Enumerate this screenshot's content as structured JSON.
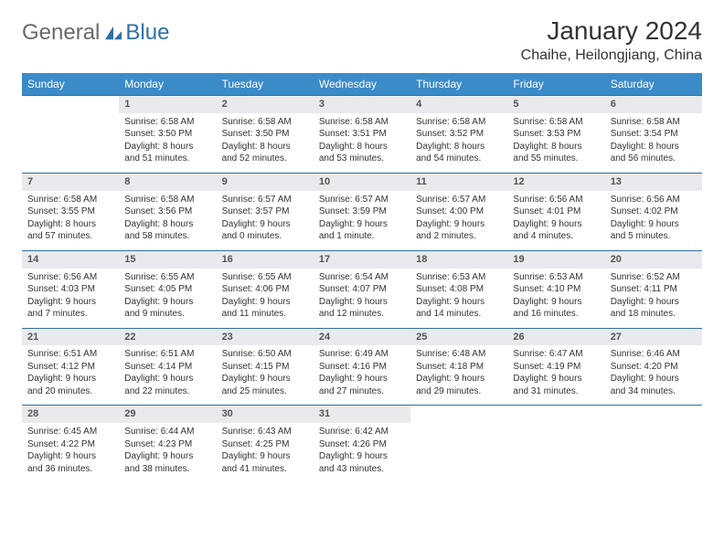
{
  "brand": {
    "word1": "General",
    "word2": "Blue"
  },
  "title": "January 2024",
  "location": "Chaihe, Heilongjiang, China",
  "colors": {
    "header_bg": "#3b8bc8",
    "header_text": "#ffffff",
    "daynum_bg": "#e8eaed",
    "rule": "#2f6fa8",
    "body_text": "#333333",
    "logo_gray": "#6a6a6a",
    "logo_blue": "#2f6fa8"
  },
  "weekdays": [
    "Sunday",
    "Monday",
    "Tuesday",
    "Wednesday",
    "Thursday",
    "Friday",
    "Saturday"
  ],
  "weeks": [
    [
      null,
      {
        "n": "1",
        "sr": "Sunrise: 6:58 AM",
        "ss": "Sunset: 3:50 PM",
        "dl": "Daylight: 8 hours and 51 minutes."
      },
      {
        "n": "2",
        "sr": "Sunrise: 6:58 AM",
        "ss": "Sunset: 3:50 PM",
        "dl": "Daylight: 8 hours and 52 minutes."
      },
      {
        "n": "3",
        "sr": "Sunrise: 6:58 AM",
        "ss": "Sunset: 3:51 PM",
        "dl": "Daylight: 8 hours and 53 minutes."
      },
      {
        "n": "4",
        "sr": "Sunrise: 6:58 AM",
        "ss": "Sunset: 3:52 PM",
        "dl": "Daylight: 8 hours and 54 minutes."
      },
      {
        "n": "5",
        "sr": "Sunrise: 6:58 AM",
        "ss": "Sunset: 3:53 PM",
        "dl": "Daylight: 8 hours and 55 minutes."
      },
      {
        "n": "6",
        "sr": "Sunrise: 6:58 AM",
        "ss": "Sunset: 3:54 PM",
        "dl": "Daylight: 8 hours and 56 minutes."
      }
    ],
    [
      {
        "n": "7",
        "sr": "Sunrise: 6:58 AM",
        "ss": "Sunset: 3:55 PM",
        "dl": "Daylight: 8 hours and 57 minutes."
      },
      {
        "n": "8",
        "sr": "Sunrise: 6:58 AM",
        "ss": "Sunset: 3:56 PM",
        "dl": "Daylight: 8 hours and 58 minutes."
      },
      {
        "n": "9",
        "sr": "Sunrise: 6:57 AM",
        "ss": "Sunset: 3:57 PM",
        "dl": "Daylight: 9 hours and 0 minutes."
      },
      {
        "n": "10",
        "sr": "Sunrise: 6:57 AM",
        "ss": "Sunset: 3:59 PM",
        "dl": "Daylight: 9 hours and 1 minute."
      },
      {
        "n": "11",
        "sr": "Sunrise: 6:57 AM",
        "ss": "Sunset: 4:00 PM",
        "dl": "Daylight: 9 hours and 2 minutes."
      },
      {
        "n": "12",
        "sr": "Sunrise: 6:56 AM",
        "ss": "Sunset: 4:01 PM",
        "dl": "Daylight: 9 hours and 4 minutes."
      },
      {
        "n": "13",
        "sr": "Sunrise: 6:56 AM",
        "ss": "Sunset: 4:02 PM",
        "dl": "Daylight: 9 hours and 5 minutes."
      }
    ],
    [
      {
        "n": "14",
        "sr": "Sunrise: 6:56 AM",
        "ss": "Sunset: 4:03 PM",
        "dl": "Daylight: 9 hours and 7 minutes."
      },
      {
        "n": "15",
        "sr": "Sunrise: 6:55 AM",
        "ss": "Sunset: 4:05 PM",
        "dl": "Daylight: 9 hours and 9 minutes."
      },
      {
        "n": "16",
        "sr": "Sunrise: 6:55 AM",
        "ss": "Sunset: 4:06 PM",
        "dl": "Daylight: 9 hours and 11 minutes."
      },
      {
        "n": "17",
        "sr": "Sunrise: 6:54 AM",
        "ss": "Sunset: 4:07 PM",
        "dl": "Daylight: 9 hours and 12 minutes."
      },
      {
        "n": "18",
        "sr": "Sunrise: 6:53 AM",
        "ss": "Sunset: 4:08 PM",
        "dl": "Daylight: 9 hours and 14 minutes."
      },
      {
        "n": "19",
        "sr": "Sunrise: 6:53 AM",
        "ss": "Sunset: 4:10 PM",
        "dl": "Daylight: 9 hours and 16 minutes."
      },
      {
        "n": "20",
        "sr": "Sunrise: 6:52 AM",
        "ss": "Sunset: 4:11 PM",
        "dl": "Daylight: 9 hours and 18 minutes."
      }
    ],
    [
      {
        "n": "21",
        "sr": "Sunrise: 6:51 AM",
        "ss": "Sunset: 4:12 PM",
        "dl": "Daylight: 9 hours and 20 minutes."
      },
      {
        "n": "22",
        "sr": "Sunrise: 6:51 AM",
        "ss": "Sunset: 4:14 PM",
        "dl": "Daylight: 9 hours and 22 minutes."
      },
      {
        "n": "23",
        "sr": "Sunrise: 6:50 AM",
        "ss": "Sunset: 4:15 PM",
        "dl": "Daylight: 9 hours and 25 minutes."
      },
      {
        "n": "24",
        "sr": "Sunrise: 6:49 AM",
        "ss": "Sunset: 4:16 PM",
        "dl": "Daylight: 9 hours and 27 minutes."
      },
      {
        "n": "25",
        "sr": "Sunrise: 6:48 AM",
        "ss": "Sunset: 4:18 PM",
        "dl": "Daylight: 9 hours and 29 minutes."
      },
      {
        "n": "26",
        "sr": "Sunrise: 6:47 AM",
        "ss": "Sunset: 4:19 PM",
        "dl": "Daylight: 9 hours and 31 minutes."
      },
      {
        "n": "27",
        "sr": "Sunrise: 6:46 AM",
        "ss": "Sunset: 4:20 PM",
        "dl": "Daylight: 9 hours and 34 minutes."
      }
    ],
    [
      {
        "n": "28",
        "sr": "Sunrise: 6:45 AM",
        "ss": "Sunset: 4:22 PM",
        "dl": "Daylight: 9 hours and 36 minutes."
      },
      {
        "n": "29",
        "sr": "Sunrise: 6:44 AM",
        "ss": "Sunset: 4:23 PM",
        "dl": "Daylight: 9 hours and 38 minutes."
      },
      {
        "n": "30",
        "sr": "Sunrise: 6:43 AM",
        "ss": "Sunset: 4:25 PM",
        "dl": "Daylight: 9 hours and 41 minutes."
      },
      {
        "n": "31",
        "sr": "Sunrise: 6:42 AM",
        "ss": "Sunset: 4:26 PM",
        "dl": "Daylight: 9 hours and 43 minutes."
      },
      null,
      null,
      null
    ]
  ]
}
